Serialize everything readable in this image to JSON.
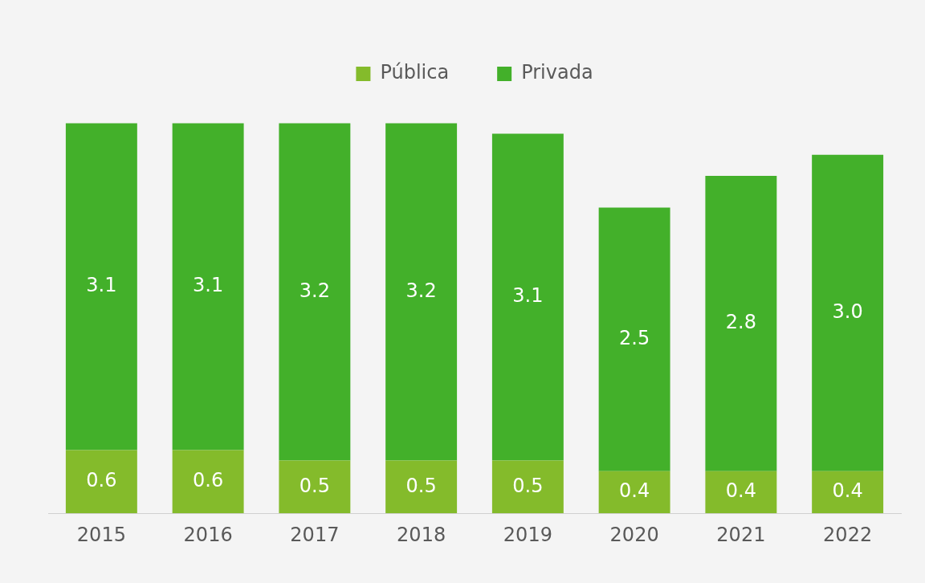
{
  "chart_data": {
    "type": "bar",
    "stacked": true,
    "categories": [
      "2015",
      "2016",
      "2017",
      "2018",
      "2019",
      "2020",
      "2021",
      "2022"
    ],
    "series": [
      {
        "name": "Pública",
        "color": "#84bb2b",
        "values": [
          0.6,
          0.6,
          0.5,
          0.5,
          0.5,
          0.4,
          0.4,
          0.4
        ],
        "value_labels": [
          "0.6",
          "0.6",
          "0.5",
          "0.5",
          "0.5",
          "0.4",
          "0.4",
          "0.4"
        ]
      },
      {
        "name": "Privada",
        "color": "#43b02a",
        "values": [
          3.1,
          3.1,
          3.2,
          3.2,
          3.1,
          2.5,
          2.8,
          3.0
        ],
        "value_labels": [
          "3.1",
          "3.1",
          "3.2",
          "3.2",
          "3.1",
          "2.5",
          "2.8",
          "3.0"
        ]
      }
    ],
    "legend": "top",
    "tick_labels": "x"
  }
}
